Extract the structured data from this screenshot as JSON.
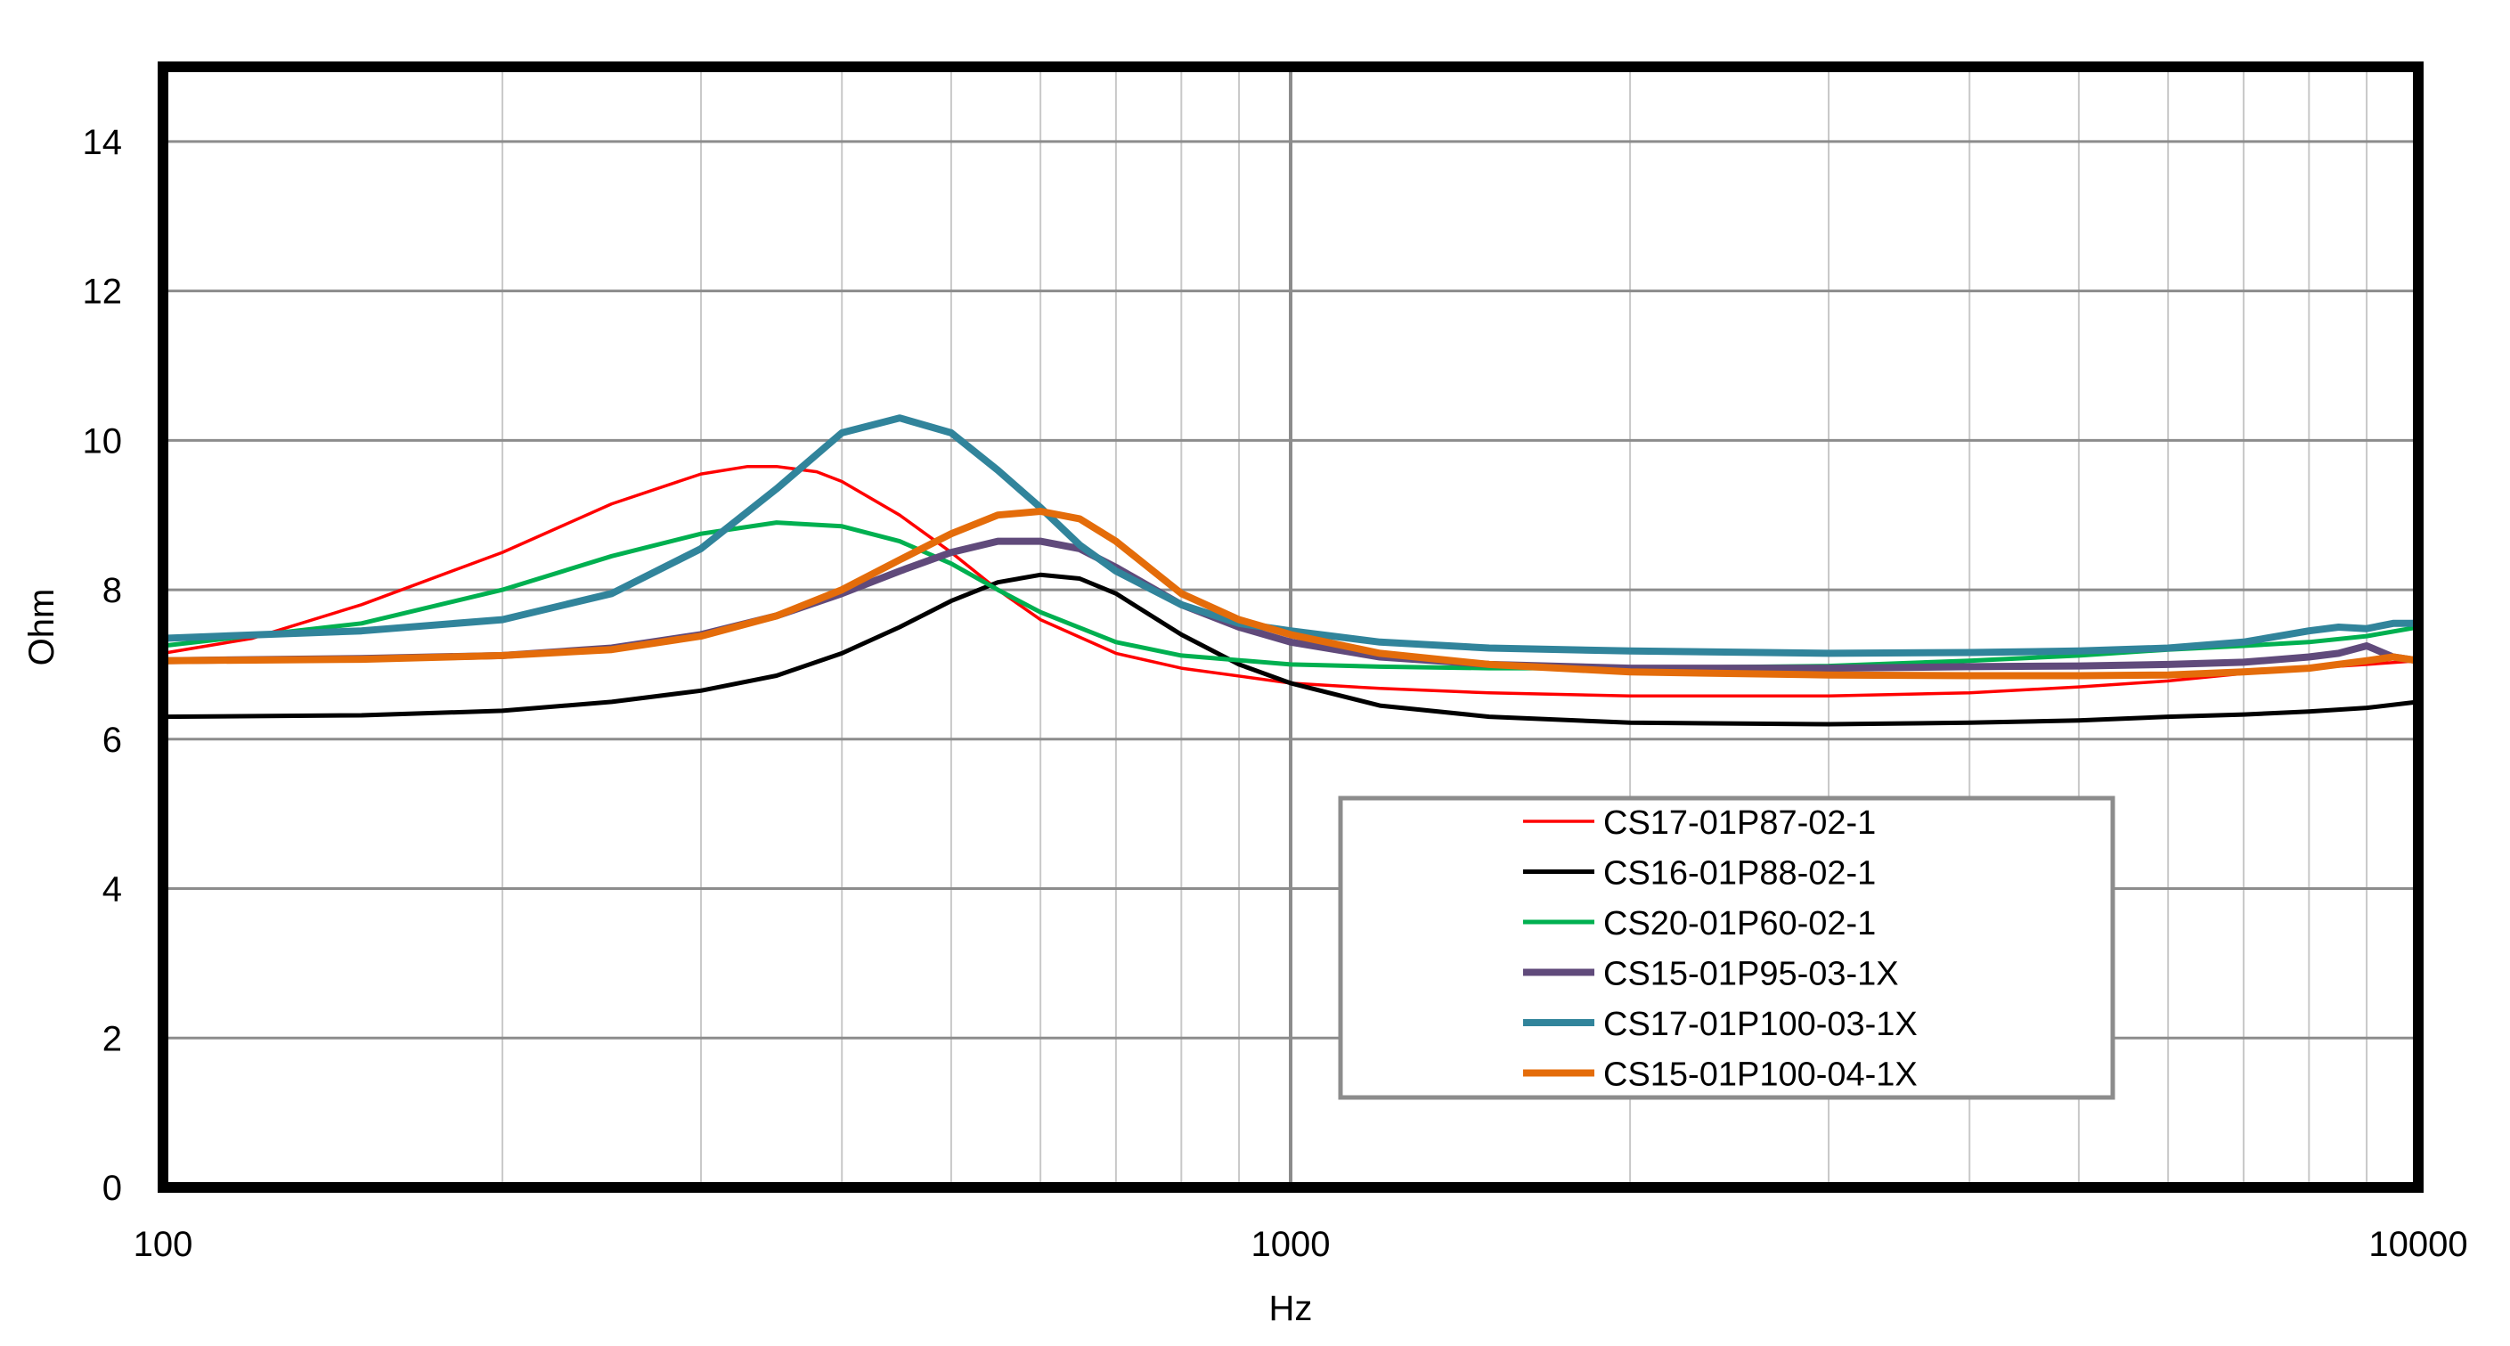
{
  "chart_data": {
    "type": "line",
    "title": "",
    "xlabel": "Hz",
    "ylabel": "Ohm",
    "xscale": "log",
    "xlim": [
      100,
      10000
    ],
    "ylim": [
      0,
      15
    ],
    "x_ticks": [
      "100",
      "1000",
      "10000"
    ],
    "y_ticks": [
      "0",
      "2",
      "4",
      "6",
      "8",
      "10",
      "12",
      "14"
    ],
    "grid": true,
    "legend_position": "lower-right",
    "series": [
      {
        "name": "CS17-01P87-02-1",
        "color": "#ff0000",
        "width": "thin",
        "x": [
          100,
          120,
          150,
          200,
          250,
          300,
          330,
          350,
          380,
          400,
          450,
          500,
          550,
          600,
          700,
          800,
          1000,
          1200,
          1500,
          2000,
          3000,
          4000,
          5000,
          6000,
          7000,
          8000,
          9000,
          10000
        ],
        "y": [
          7.15,
          7.35,
          7.8,
          8.5,
          9.15,
          9.55,
          9.65,
          9.65,
          9.58,
          9.45,
          9.0,
          8.5,
          8.0,
          7.6,
          7.15,
          6.95,
          6.75,
          6.68,
          6.62,
          6.58,
          6.58,
          6.62,
          6.7,
          6.78,
          6.88,
          6.95,
          7.0,
          7.05
        ]
      },
      {
        "name": "CS16-01P88-02-1",
        "color": "#000000",
        "width": "medium",
        "x": [
          100,
          150,
          200,
          250,
          300,
          350,
          400,
          450,
          500,
          550,
          600,
          650,
          700,
          800,
          900,
          1000,
          1200,
          1500,
          2000,
          3000,
          4000,
          5000,
          6000,
          7000,
          8000,
          9000,
          10000
        ],
        "y": [
          6.3,
          6.32,
          6.38,
          6.5,
          6.65,
          6.85,
          7.15,
          7.5,
          7.85,
          8.1,
          8.2,
          8.15,
          7.95,
          7.4,
          7.0,
          6.75,
          6.45,
          6.3,
          6.22,
          6.2,
          6.22,
          6.25,
          6.3,
          6.33,
          6.37,
          6.42,
          6.5
        ]
      },
      {
        "name": "CS20-01P60-02-1",
        "color": "#00b050",
        "width": "medium",
        "x": [
          100,
          150,
          200,
          250,
          300,
          350,
          400,
          450,
          500,
          550,
          600,
          700,
          800,
          1000,
          1200,
          1500,
          2000,
          3000,
          4000,
          5000,
          6000,
          7000,
          8000,
          9000,
          10000
        ],
        "y": [
          7.25,
          7.55,
          8.0,
          8.45,
          8.75,
          8.9,
          8.85,
          8.65,
          8.35,
          8.0,
          7.7,
          7.3,
          7.12,
          7.0,
          6.97,
          6.95,
          6.95,
          6.98,
          7.05,
          7.12,
          7.2,
          7.25,
          7.3,
          7.38,
          7.5
        ]
      },
      {
        "name": "CS15-01P95-03-1X",
        "color": "#604a7b",
        "width": "thick",
        "x": [
          100,
          150,
          200,
          250,
          300,
          350,
          400,
          450,
          500,
          550,
          600,
          650,
          700,
          800,
          900,
          1000,
          1200,
          1500,
          2000,
          3000,
          4000,
          5000,
          6000,
          7000,
          8000,
          8500,
          9000,
          9500,
          10000
        ],
        "y": [
          7.05,
          7.08,
          7.12,
          7.22,
          7.4,
          7.65,
          7.95,
          8.25,
          8.5,
          8.65,
          8.65,
          8.55,
          8.3,
          7.8,
          7.5,
          7.3,
          7.1,
          7.0,
          6.95,
          6.95,
          6.97,
          6.98,
          7.0,
          7.03,
          7.1,
          7.15,
          7.25,
          7.1,
          7.05
        ]
      },
      {
        "name": "CS17-01P100-03-1X",
        "color": "#31849b",
        "width": "thick",
        "x": [
          100,
          150,
          200,
          250,
          300,
          350,
          400,
          450,
          500,
          550,
          600,
          650,
          700,
          800,
          900,
          1000,
          1200,
          1500,
          2000,
          3000,
          4000,
          5000,
          6000,
          7000,
          8000,
          8500,
          9000,
          9500,
          10000
        ],
        "y": [
          7.35,
          7.45,
          7.6,
          7.95,
          8.55,
          9.35,
          10.1,
          10.3,
          10.1,
          9.6,
          9.1,
          8.6,
          8.25,
          7.8,
          7.55,
          7.45,
          7.3,
          7.22,
          7.18,
          7.15,
          7.16,
          7.18,
          7.22,
          7.3,
          7.45,
          7.5,
          7.48,
          7.55,
          7.55
        ]
      },
      {
        "name": "CS15-01P100-04-1X",
        "color": "#e46c0a",
        "width": "thick",
        "x": [
          100,
          150,
          200,
          250,
          300,
          350,
          400,
          450,
          500,
          550,
          600,
          650,
          700,
          800,
          900,
          1000,
          1200,
          1500,
          2000,
          3000,
          4000,
          5000,
          6000,
          7000,
          8000,
          9000,
          9500,
          10000
        ],
        "y": [
          7.05,
          7.07,
          7.12,
          7.2,
          7.38,
          7.65,
          8.0,
          8.4,
          8.75,
          9.0,
          9.05,
          8.95,
          8.65,
          7.95,
          7.6,
          7.4,
          7.15,
          7.0,
          6.9,
          6.86,
          6.85,
          6.85,
          6.86,
          6.9,
          6.95,
          7.05,
          7.1,
          7.05
        ]
      }
    ]
  }
}
